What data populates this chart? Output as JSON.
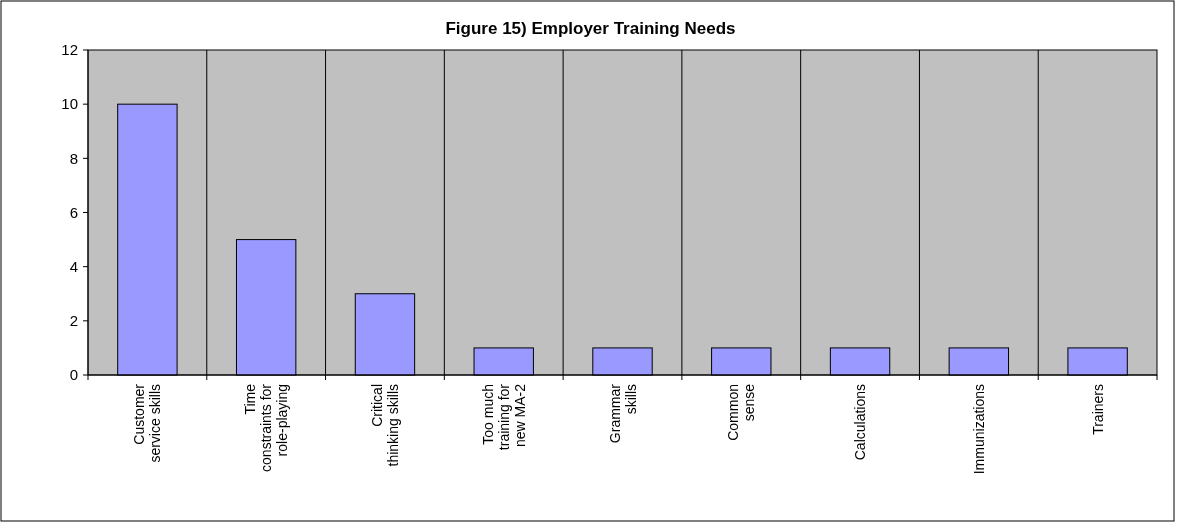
{
  "chart_data": {
    "type": "bar",
    "title": "Figure 15) Employer Training Needs",
    "categories": [
      "Customer\nservice skills",
      "Time\nconstraints for\nrole-playing",
      "Critical\nthinking skills",
      "Too much\ntraining for\nnew MA-2",
      "Grammar\nskills",
      "Common\nsense",
      "Calculations",
      "Immunizations",
      "Trainers"
    ],
    "values": [
      10,
      5,
      3,
      1,
      1,
      1,
      1,
      1,
      1
    ],
    "color": "#9999ff",
    "ylim": [
      0,
      12
    ],
    "yticks": [
      0,
      2,
      4,
      6,
      8,
      10,
      12
    ],
    "grid": "x"
  }
}
